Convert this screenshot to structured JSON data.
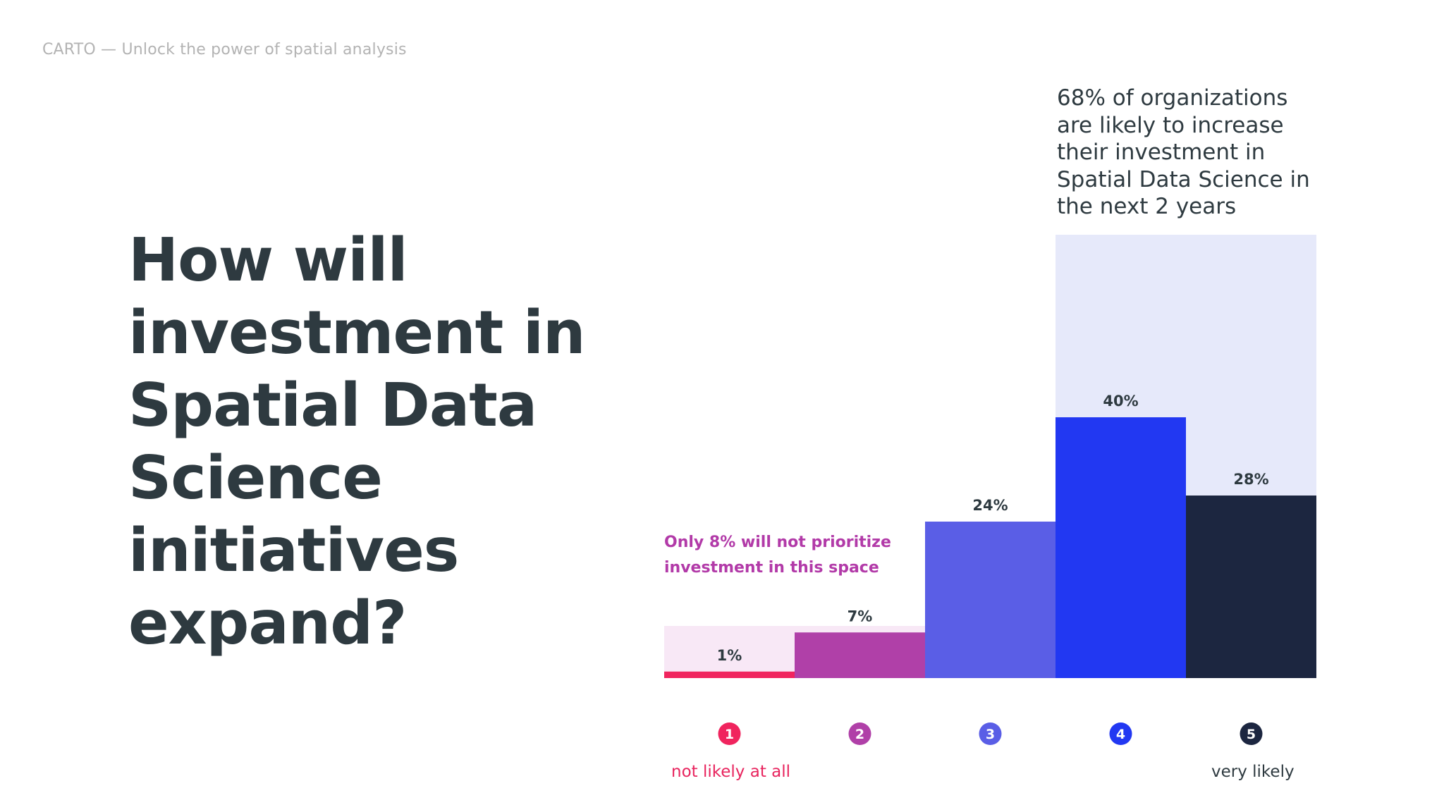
{
  "header": "CARTO — Unlock the power of spatial analysis",
  "title_lines": [
    "How will",
    "investment in",
    "Spatial Data",
    "Science",
    "initiatives",
    "expand?"
  ],
  "annotations": {
    "top_lines": [
      "68% of organizations",
      "are likely to increase",
      "their investment in",
      "Spatial Data Science in",
      "the next 2 years"
    ],
    "left_lines": [
      "Only 8% will not prioritize",
      "investment in this space"
    ]
  },
  "scale_labels": {
    "low": "not likely at all",
    "high": "very likely"
  },
  "colors": {
    "bar_1": "#f0245e",
    "bar_2": "#b040a8",
    "bar_3": "#5a5ee6",
    "bar_4": "#2238f2",
    "bar_5": "#1c2640",
    "highlight_low": "#f8e8f6",
    "highlight_high": "#e6e9fa",
    "low_label": "#e8245e",
    "high_label": "#2e3a40"
  },
  "chart_data": {
    "type": "bar",
    "categories": [
      "1",
      "2",
      "3",
      "4",
      "5"
    ],
    "values": [
      1,
      7,
      24,
      40,
      28
    ],
    "value_labels": [
      "1%",
      "7%",
      "24%",
      "40%",
      "28%"
    ],
    "grouped_highlights": [
      {
        "categories": [
          "1",
          "2"
        ],
        "total": 8
      },
      {
        "categories": [
          "4",
          "5"
        ],
        "total": 68
      }
    ]
  }
}
